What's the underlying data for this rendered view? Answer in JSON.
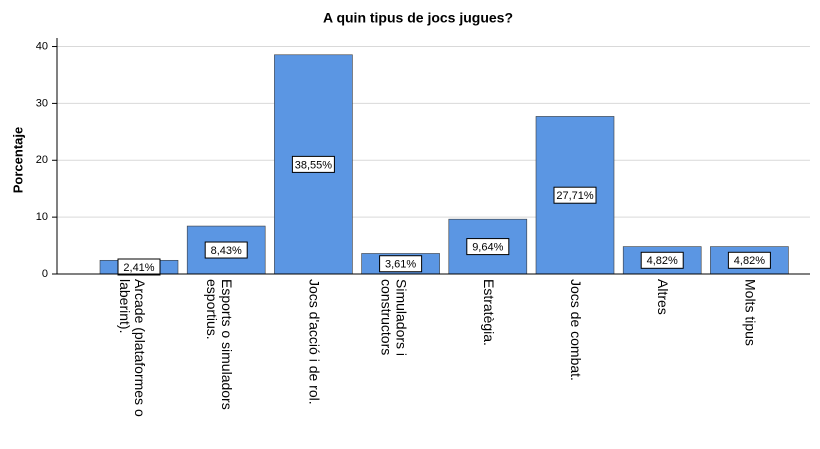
{
  "chart_data": {
    "type": "bar",
    "title": "A quin tipus de jocs jugues?",
    "y_label": "Porcentaje",
    "categories": [
      "Arcade (plataformes o laberint).",
      "Esports o simuladors esportius.",
      "Jocs d'acció i de rol.",
      "Simuladors i constructors",
      "Estratègia.",
      "Jocs de combat.",
      "Altres",
      "Molts tipus"
    ],
    "values": [
      2.41,
      8.43,
      38.55,
      3.61,
      9.64,
      27.71,
      4.82,
      4.82
    ],
    "value_labels": [
      "2,41%",
      "8,43%",
      "38,55%",
      "3,61%",
      "9,64%",
      "27,71%",
      "4,82%",
      "4,82%"
    ],
    "color": "#5b96e3",
    "ylim": [
      0,
      41.5
    ],
    "yticks": [
      0,
      10,
      20,
      30,
      40
    ],
    "grid": true
  }
}
